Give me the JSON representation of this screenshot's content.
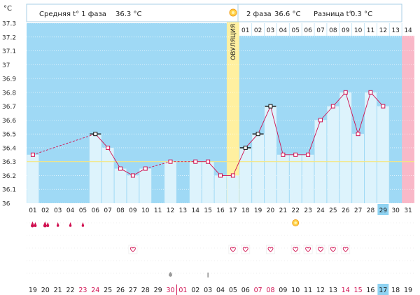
{
  "header": {
    "unit": "°C",
    "phase1_label": "Средняя t° 1 фаза",
    "phase1_value": "36.3 °C",
    "phase2_label": "2 фаза",
    "phase2_value": "36.6 °C",
    "diff_label": "Разница t°",
    "diff_value": "0.3 °C",
    "ovulation_label": "ОВУЛЯЦИЯ",
    "sun_icon": "sun-icon"
  },
  "colors": {
    "plot_bg": "#9fd9f5",
    "bar_fill": "#ddf3fc",
    "line_color": "#d01050",
    "ovulation_band": "#fff0a0",
    "reference_line": "#f5e680",
    "last_day_band": "#f9b8c8",
    "red_text": "#d01050",
    "highlight": "#8fd3f2"
  },
  "chart_data": {
    "type": "line",
    "ylabel": "°C",
    "ylim": [
      36.0,
      37.3
    ],
    "yticks": [
      "37.3",
      "37.2",
      "37.1",
      "37",
      "36.9",
      "36.8",
      "36.7",
      "36.6",
      "36.5",
      "36.4",
      "36.3",
      "36.2",
      "36.1",
      "36"
    ],
    "reference_value": 36.3,
    "days": [
      "01",
      "02",
      "03",
      "04",
      "05",
      "06",
      "07",
      "08",
      "09",
      "10",
      "11",
      "12",
      "13",
      "14",
      "15",
      "16",
      "17",
      "18",
      "19",
      "20",
      "21",
      "22",
      "23",
      "24",
      "25",
      "26",
      "27",
      "28",
      "29",
      "30",
      "31"
    ],
    "dates": [
      "19",
      "20",
      "21",
      "22",
      "23",
      "24",
      "25",
      "26",
      "27",
      "28",
      "29",
      "30",
      "01",
      "02",
      "03",
      "04",
      "05",
      "06",
      "07",
      "08",
      "09",
      "10",
      "11",
      "12",
      "13",
      "14",
      "15",
      "16",
      "17",
      "18",
      "19"
    ],
    "red_dates": [
      "23",
      "24",
      "30",
      "01",
      "07",
      "08",
      "14",
      "15"
    ],
    "temperatures": [
      36.35,
      null,
      null,
      null,
      null,
      36.5,
      36.4,
      36.25,
      36.2,
      36.25,
      null,
      36.3,
      null,
      36.3,
      36.3,
      36.2,
      36.2,
      36.4,
      36.5,
      36.7,
      36.35,
      36.35,
      36.35,
      36.6,
      36.7,
      36.8,
      36.5,
      36.8,
      36.7,
      null,
      null
    ],
    "marked_days": [
      "06",
      "18",
      "19",
      "20"
    ],
    "phase2_day_numbers": [
      "01",
      "02",
      "03",
      "04",
      "05",
      "06",
      "07",
      "08",
      "09",
      "10",
      "11",
      "12",
      "13",
      "14"
    ],
    "ovulation_day": "17",
    "highlighted_day": "29",
    "highlighted_date": "17",
    "drop_icon_days": [
      "01",
      "02",
      "03",
      "04",
      "05"
    ],
    "drop_icon_sizes": [
      "large",
      "large",
      "small",
      "small",
      "small"
    ],
    "sun_icon_day": "22",
    "heart_icon_days": [
      "09",
      "17",
      "18",
      "20",
      "22",
      "23",
      "24",
      "25",
      "26"
    ],
    "spot_icon_day": "12",
    "cervix_icon_day": "15",
    "cervix_label": "I"
  }
}
